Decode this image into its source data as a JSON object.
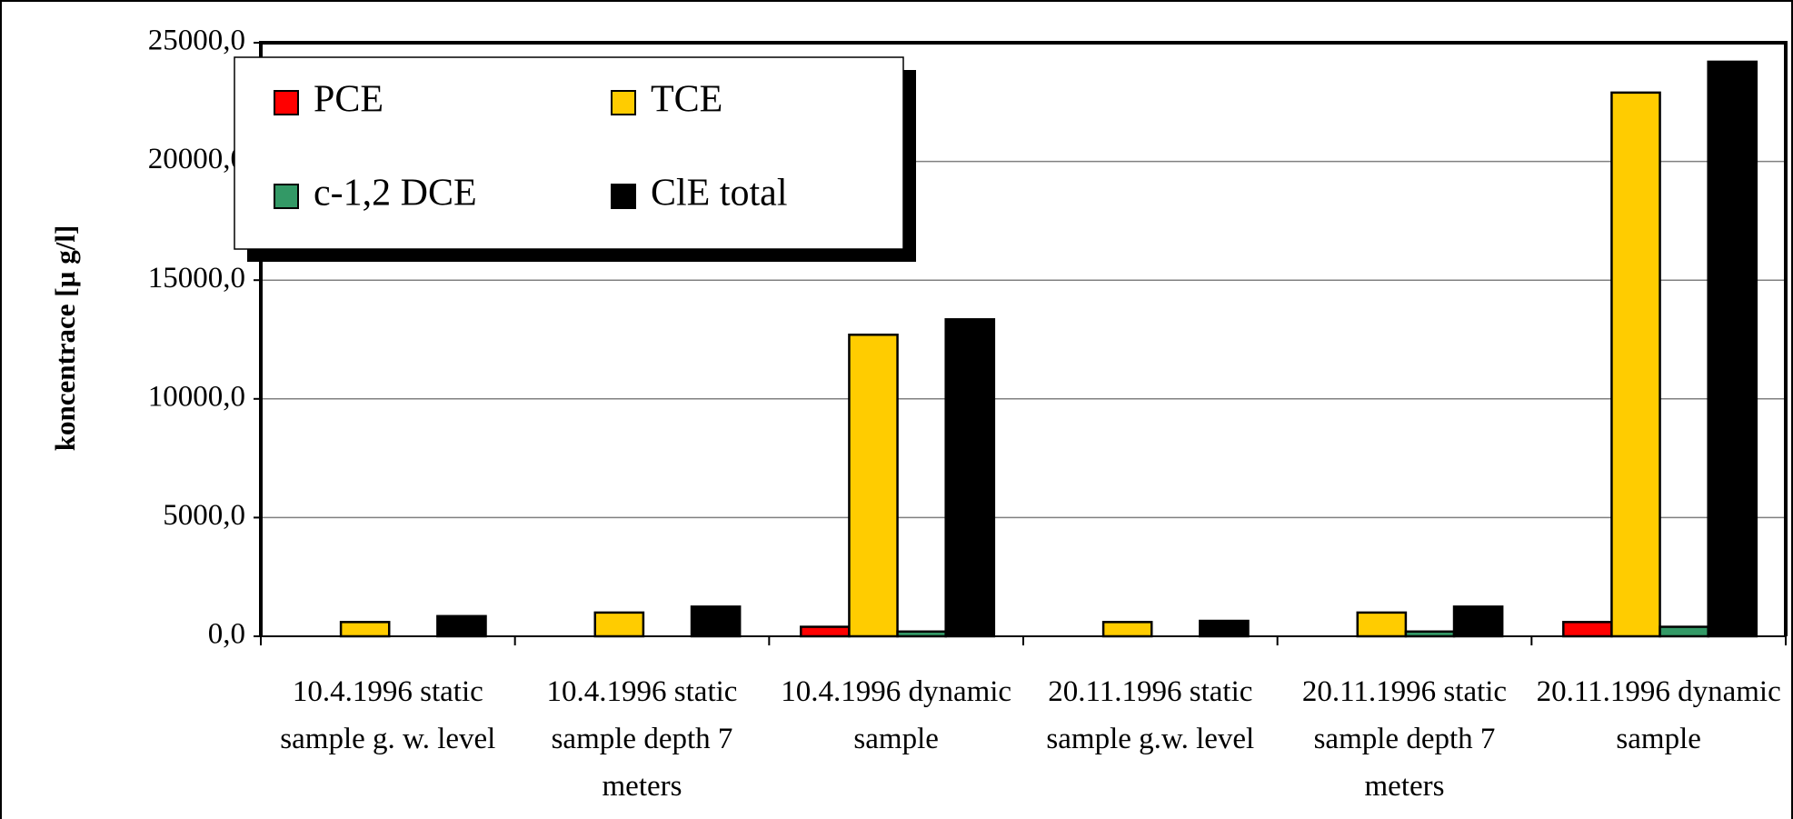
{
  "chart_data": {
    "type": "bar",
    "y_label": "koncentrace [µ g/l]",
    "categories": [
      "10.4.1996 static sample g. w. level",
      "10.4.1996 static sample depth 7 meters",
      "10.4.1996 dynamic sample",
      "20.11.1996 static sample g.w. level",
      "20.11.1996 static sample depth 7 meters",
      "20.11.1996 dynamic sample"
    ],
    "series": [
      {
        "name": "PCE",
        "color": "#ff0000",
        "values": [
          0,
          0,
          400,
          0,
          0,
          600
        ]
      },
      {
        "name": "TCE",
        "color": "#ffcc00",
        "values": [
          600,
          1000,
          12700,
          600,
          1000,
          22900
        ]
      },
      {
        "name": "c-1,2 DCE",
        "color": "#339966",
        "values": [
          0,
          0,
          200,
          0,
          200,
          400
        ]
      },
      {
        "name": "ClE total",
        "color": "#000000",
        "values": [
          850,
          1250,
          13350,
          650,
          1250,
          24200
        ]
      }
    ],
    "ylim": [
      0,
      25000
    ],
    "yticks": [
      {
        "value": 0,
        "label": "0,0"
      },
      {
        "value": 5000,
        "label": "5000,0"
      },
      {
        "value": 10000,
        "label": "10000,0"
      },
      {
        "value": 15000,
        "label": "15000,0"
      },
      {
        "value": 20000,
        "label": "20000,0"
      },
      {
        "value": 25000,
        "label": "25000,0"
      }
    ],
    "grid": true,
    "legend": "upper left"
  }
}
